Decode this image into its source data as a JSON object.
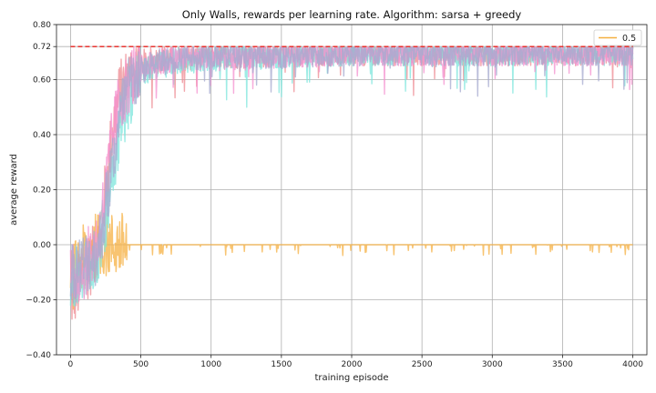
{
  "chart_data": {
    "type": "line",
    "title": "Only Walls, rewards per learning rate. Algorithm: sarsa + greedy",
    "xlabel": "training episode",
    "ylabel": "average reward",
    "xlim": [
      -100,
      4100
    ],
    "ylim": [
      -0.4,
      0.8
    ],
    "x_ticks": [
      0,
      500,
      1000,
      1500,
      2000,
      2500,
      3000,
      3500,
      4000
    ],
    "x_tick_labels": [
      "0",
      "500",
      "1000",
      "1500",
      "2000",
      "2500",
      "3000",
      "3500",
      "4000"
    ],
    "y_ticks": [
      -0.4,
      -0.2,
      0.0,
      0.2,
      0.4,
      0.6,
      0.72,
      0.8
    ],
    "y_tick_labels": [
      "−0.40",
      "−0.20",
      "0.00",
      "0.20",
      "0.40",
      "0.60",
      "0.72",
      "0.80"
    ],
    "grid": true,
    "legend": {
      "position": "top-right",
      "entries": [
        {
          "label": "0.5",
          "color": "#f5b041"
        }
      ]
    },
    "reference_line": {
      "y": 0.72,
      "x_range": [
        0,
        4000
      ],
      "color": "#e8211c",
      "style": "dashed"
    },
    "series": [
      {
        "color": "#ee8a92",
        "x": [
          0,
          50,
          100,
          150,
          200,
          250,
          300,
          350,
          400,
          450,
          500,
          600,
          700,
          800,
          1000,
          1300,
          1500,
          2000,
          3000,
          4000
        ],
        "values": [
          -0.2,
          -0.16,
          -0.1,
          -0.06,
          0.0,
          0.2,
          0.42,
          0.55,
          0.6,
          0.63,
          0.66,
          0.67,
          0.68,
          0.68,
          0.69,
          0.69,
          0.7,
          0.7,
          0.7,
          0.7
        ]
      },
      {
        "color": "#f5b041",
        "x": [
          0,
          50,
          100,
          150,
          200,
          300,
          500,
          1000,
          2000,
          3000,
          4000
        ],
        "values": [
          -0.14,
          -0.08,
          -0.04,
          -0.01,
          0.0,
          0.0,
          0.0,
          0.0,
          0.0,
          0.0,
          0.0
        ]
      },
      {
        "color": "#7ee6dc",
        "x": [
          0,
          100,
          200,
          250,
          300,
          350,
          400,
          450,
          500,
          600,
          800,
          1000,
          1500,
          2000,
          3000,
          4000
        ],
        "values": [
          -0.14,
          -0.1,
          -0.02,
          0.1,
          0.28,
          0.42,
          0.52,
          0.58,
          0.62,
          0.65,
          0.67,
          0.68,
          0.69,
          0.7,
          0.7,
          0.7
        ]
      },
      {
        "color": "#f490cf",
        "x": [
          0,
          100,
          200,
          250,
          300,
          350,
          400,
          450,
          500,
          600,
          800,
          1000,
          1500,
          2000,
          3000,
          4000
        ],
        "values": [
          -0.12,
          -0.08,
          0.02,
          0.2,
          0.4,
          0.52,
          0.58,
          0.62,
          0.64,
          0.66,
          0.68,
          0.68,
          0.69,
          0.7,
          0.7,
          0.7
        ]
      },
      {
        "color": "#a5a9cf",
        "x": [
          0,
          100,
          200,
          300,
          350,
          400,
          450,
          500,
          600,
          800,
          1000,
          1500,
          2000,
          3000,
          4000
        ],
        "values": [
          -0.1,
          -0.07,
          -0.02,
          0.3,
          0.46,
          0.56,
          0.6,
          0.63,
          0.66,
          0.68,
          0.69,
          0.69,
          0.7,
          0.7,
          0.7
        ]
      }
    ]
  }
}
